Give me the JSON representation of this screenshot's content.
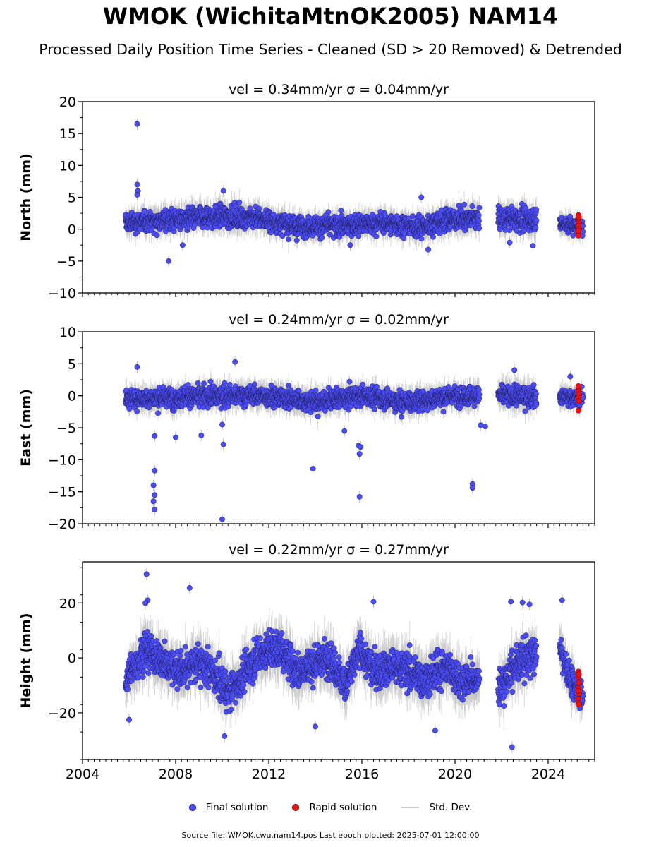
{
  "header": {
    "title": "WMOK (WichitaMtnOK2005) NAM14",
    "subtitle": "Processed Daily Position Time Series - Cleaned (SD > 20 Removed) & Detrended"
  },
  "legend": {
    "final": "Final solution",
    "rapid": "Rapid solution",
    "std": "Std. Dev."
  },
  "footer": {
    "text": "Source file: WMOK.cwu.nam14.pos  Last epoch plotted: 2025-07-01 12:00:00"
  },
  "colors": {
    "final": "#4b4bff",
    "rapid": "#ee1111",
    "std": "#bbbbbb",
    "outline": "#1a1a3a"
  },
  "chart_data": [
    {
      "type": "scatter",
      "name": "north",
      "title": "vel = 0.34mm/yr   σ = 0.04mm/yr",
      "ylabel": "North (mm)",
      "xlim": [
        2004,
        2026
      ],
      "ylim": [
        -10,
        20
      ],
      "yticks": [
        -10,
        -5,
        0,
        5,
        10,
        15,
        20
      ],
      "ytick_labels": [
        "−10",
        "−5",
        "0",
        "5",
        "10",
        "15",
        "20"
      ],
      "segments": [
        [
          2005.85,
          2021.05
        ],
        [
          2021.85,
          2023.5
        ],
        [
          2024.5,
          2025.5
        ]
      ],
      "noise": [
        {
          "t": 2005.85,
          "c": 1.0,
          "a": 1.2
        },
        {
          "t": 2008.0,
          "c": 1.5,
          "a": 1.4
        },
        {
          "t": 2010.0,
          "c": 2.0,
          "a": 1.4
        },
        {
          "t": 2011.5,
          "c": 1.8,
          "a": 1.4
        },
        {
          "t": 2013.0,
          "c": 0.5,
          "a": 1.3
        },
        {
          "t": 2015.0,
          "c": 0.5,
          "a": 1.3
        },
        {
          "t": 2017.0,
          "c": 1.0,
          "a": 1.3
        },
        {
          "t": 2018.5,
          "c": 0.3,
          "a": 1.3
        },
        {
          "t": 2019.7,
          "c": 1.5,
          "a": 1.4
        },
        {
          "t": 2021.0,
          "c": 1.8,
          "a": 1.4
        },
        {
          "t": 2023.5,
          "c": 1.5,
          "a": 1.4
        },
        {
          "t": 2025.5,
          "c": 0.3,
          "a": 1.0
        }
      ],
      "outliers": [
        [
          2006.35,
          16.5
        ],
        [
          2006.35,
          7.0
        ],
        [
          2006.38,
          6.0
        ],
        [
          2006.35,
          5.4
        ],
        [
          2007.7,
          -5.0
        ],
        [
          2018.55,
          5.0
        ],
        [
          2010.05,
          6.0
        ],
        [
          2008.3,
          -2.5
        ],
        [
          2022.35,
          -2.1
        ],
        [
          2023.35,
          -2.6
        ],
        [
          2018.85,
          -3.2
        ],
        [
          2015.5,
          -2.5
        ]
      ],
      "rapid": [
        [
          2025.3,
          2.2
        ],
        [
          2025.3,
          1.6
        ],
        [
          2025.32,
          1.0
        ],
        [
          2025.3,
          0.5
        ],
        [
          2025.32,
          0.0
        ],
        [
          2025.3,
          -0.5
        ],
        [
          2025.3,
          -1.0
        ],
        [
          2025.32,
          1.9
        ],
        [
          2025.3,
          -0.3
        ]
      ]
    },
    {
      "type": "scatter",
      "name": "east",
      "title": "vel = 0.24mm/yr   σ = 0.02mm/yr",
      "ylabel": "East (mm)",
      "xlim": [
        2004,
        2026
      ],
      "ylim": [
        -20,
        10
      ],
      "yticks": [
        -20,
        -15,
        -10,
        -5,
        0,
        5,
        10
      ],
      "ytick_labels": [
        "−20",
        "−15",
        "−10",
        "−5",
        "0",
        "5",
        "10"
      ],
      "segments": [
        [
          2005.85,
          2021.05
        ],
        [
          2021.85,
          2023.5
        ],
        [
          2024.5,
          2025.5
        ]
      ],
      "noise": [
        {
          "t": 2005.85,
          "c": -0.5,
          "a": 1.2
        },
        {
          "t": 2008.0,
          "c": -0.3,
          "a": 1.3
        },
        {
          "t": 2010.0,
          "c": 0.0,
          "a": 1.3
        },
        {
          "t": 2012.0,
          "c": 0.0,
          "a": 1.3
        },
        {
          "t": 2014.0,
          "c": -1.0,
          "a": 1.3
        },
        {
          "t": 2016.0,
          "c": 0.0,
          "a": 1.2
        },
        {
          "t": 2018.0,
          "c": -1.0,
          "a": 1.3
        },
        {
          "t": 2020.0,
          "c": 0.0,
          "a": 1.2
        },
        {
          "t": 2022.5,
          "c": 0.0,
          "a": 1.4
        },
        {
          "t": 2025.5,
          "c": -0.3,
          "a": 1.0
        }
      ],
      "outliers": [
        [
          2006.35,
          4.5
        ],
        [
          2007.1,
          -6.3
        ],
        [
          2007.1,
          -11.7
        ],
        [
          2007.05,
          -14.0
        ],
        [
          2007.1,
          -15.5
        ],
        [
          2007.05,
          -16.5
        ],
        [
          2007.1,
          -17.8
        ],
        [
          2008.0,
          -6.5
        ],
        [
          2009.1,
          -6.2
        ],
        [
          2010.0,
          -4.5
        ],
        [
          2010.05,
          -7.6
        ],
        [
          2010.0,
          -19.3
        ],
        [
          2010.55,
          5.3
        ],
        [
          2013.9,
          -11.4
        ],
        [
          2015.25,
          -5.5
        ],
        [
          2015.85,
          -7.8
        ],
        [
          2015.9,
          -9.1
        ],
        [
          2015.9,
          -15.8
        ],
        [
          2015.95,
          -8.0
        ],
        [
          2020.75,
          -13.8
        ],
        [
          2020.75,
          -14.4
        ],
        [
          2021.3,
          -4.8
        ],
        [
          2021.1,
          -4.6
        ],
        [
          2022.55,
          4.0
        ],
        [
          2024.95,
          3.0
        ],
        [
          2017.7,
          -3.3
        ]
      ],
      "rapid": [
        [
          2025.3,
          1.2
        ],
        [
          2025.3,
          0.7
        ],
        [
          2025.32,
          0.2
        ],
        [
          2025.3,
          -0.3
        ],
        [
          2025.32,
          -0.8
        ],
        [
          2025.3,
          -2.3
        ],
        [
          2025.3,
          1.5
        ]
      ]
    },
    {
      "type": "scatter",
      "name": "height",
      "title": "vel = 0.22mm/yr   σ = 0.27mm/yr",
      "ylabel": "Height (mm)",
      "xlim": [
        2004,
        2026
      ],
      "ylim": [
        -37,
        35
      ],
      "yticks": [
        -20,
        0,
        20
      ],
      "ytick_labels": [
        "−20",
        "0",
        "20"
      ],
      "segments": [
        [
          2005.85,
          2021.05
        ],
        [
          2021.85,
          2023.5
        ],
        [
          2024.5,
          2025.5
        ]
      ],
      "noise": [
        {
          "t": 2005.85,
          "c": -8.0,
          "a": 5.0
        },
        {
          "t": 2006.7,
          "c": 3.0,
          "a": 5.5
        },
        {
          "t": 2007.5,
          "c": -2.0,
          "a": 5.5
        },
        {
          "t": 2008.3,
          "c": -5.0,
          "a": 5.5
        },
        {
          "t": 2009.0,
          "c": -1.0,
          "a": 5.5
        },
        {
          "t": 2009.6,
          "c": -6.0,
          "a": 5.5
        },
        {
          "t": 2010.3,
          "c": -13.0,
          "a": 5.5
        },
        {
          "t": 2011.0,
          "c": -5.0,
          "a": 5.5
        },
        {
          "t": 2011.7,
          "c": 2.0,
          "a": 5.5
        },
        {
          "t": 2012.5,
          "c": 3.0,
          "a": 5.5
        },
        {
          "t": 2013.3,
          "c": -5.0,
          "a": 5.5
        },
        {
          "t": 2014.0,
          "c": -2.0,
          "a": 5.5
        },
        {
          "t": 2014.6,
          "c": 0.0,
          "a": 5.5
        },
        {
          "t": 2015.3,
          "c": -10.0,
          "a": 5.5
        },
        {
          "t": 2015.9,
          "c": 3.0,
          "a": 5.5
        },
        {
          "t": 2016.5,
          "c": -5.0,
          "a": 5.5
        },
        {
          "t": 2017.2,
          "c": -3.0,
          "a": 5.5
        },
        {
          "t": 2018.0,
          "c": -5.0,
          "a": 5.5
        },
        {
          "t": 2018.7,
          "c": -8.0,
          "a": 5.5
        },
        {
          "t": 2019.5,
          "c": -3.0,
          "a": 5.5
        },
        {
          "t": 2020.2,
          "c": -8.0,
          "a": 5.5
        },
        {
          "t": 2021.0,
          "c": -8.0,
          "a": 5.0
        },
        {
          "t": 2022.0,
          "c": -10.0,
          "a": 5.0
        },
        {
          "t": 2022.7,
          "c": -2.0,
          "a": 5.5
        },
        {
          "t": 2023.5,
          "c": 2.0,
          "a": 5.0
        },
        {
          "t": 2024.6,
          "c": 2.0,
          "a": 5.0
        },
        {
          "t": 2025.0,
          "c": -10.0,
          "a": 5.0
        },
        {
          "t": 2025.5,
          "c": -12.0,
          "a": 4.0
        }
      ],
      "outliers": [
        [
          2006.75,
          30.5
        ],
        [
          2006.8,
          21.0
        ],
        [
          2008.6,
          25.5
        ],
        [
          2006.7,
          20.0
        ],
        [
          2022.4,
          20.5
        ],
        [
          2022.45,
          -32.5
        ],
        [
          2022.9,
          20.2
        ],
        [
          2010.1,
          -28.5
        ],
        [
          2014.0,
          -25.0
        ],
        [
          2019.15,
          -26.5
        ],
        [
          2006.0,
          -22.5
        ],
        [
          2024.6,
          21.0
        ],
        [
          2023.2,
          19.5
        ],
        [
          2016.5,
          20.5
        ]
      ],
      "rapid": [
        [
          2025.3,
          -5.0
        ],
        [
          2025.3,
          -7.0
        ],
        [
          2025.32,
          -9.0
        ],
        [
          2025.3,
          -11.0
        ],
        [
          2025.32,
          -13.0
        ],
        [
          2025.3,
          -15.0
        ],
        [
          2025.3,
          -16.5
        ],
        [
          2025.32,
          -6.0
        ],
        [
          2025.3,
          -12.0
        ],
        [
          2025.32,
          -17.0
        ]
      ]
    }
  ],
  "x_axis": {
    "ticks": [
      2004,
      2008,
      2012,
      2016,
      2020,
      2024
    ],
    "tick_labels": [
      "2004",
      "2008",
      "2012",
      "2016",
      "2020",
      "2024"
    ],
    "minor_step_years": 0.25
  }
}
